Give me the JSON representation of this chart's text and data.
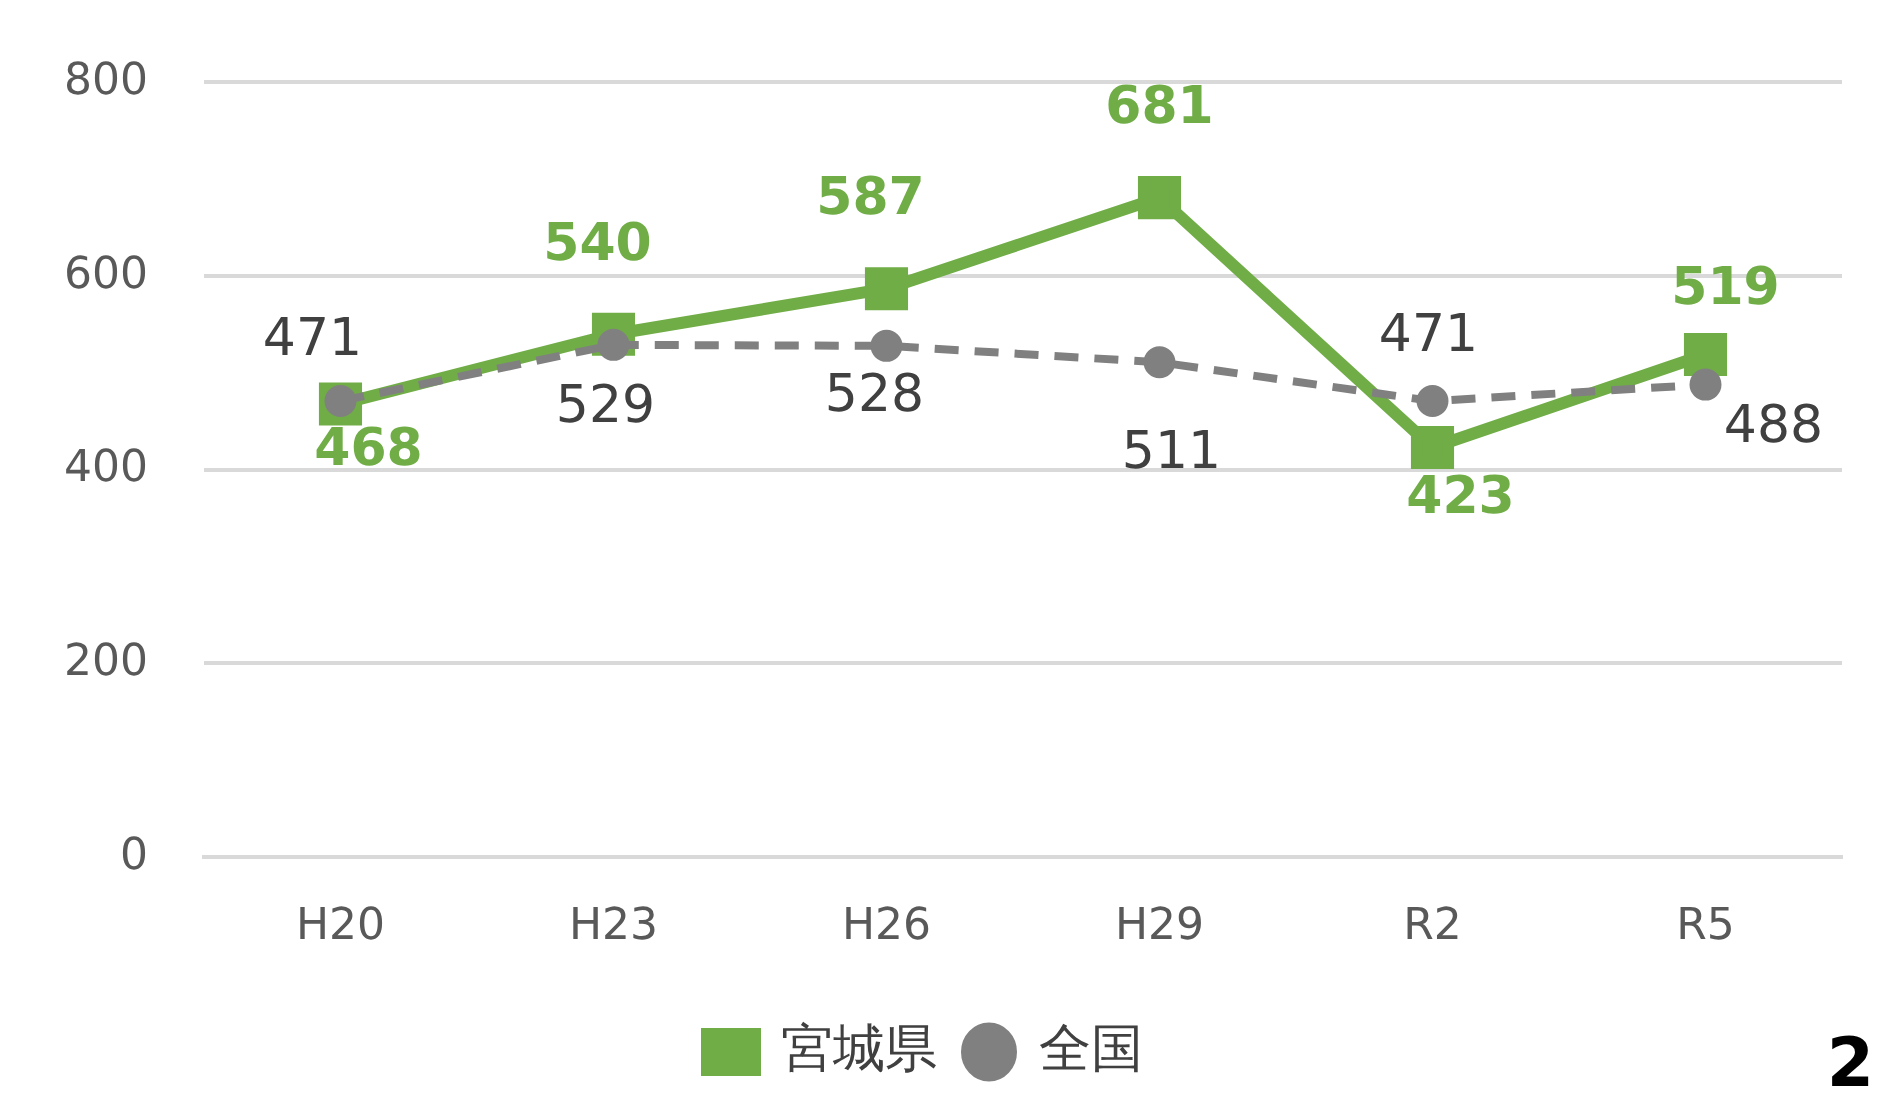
{
  "chart_data": {
    "type": "line",
    "categories": [
      "H20",
      "H23",
      "H26",
      "H29",
      "R2",
      "R5"
    ],
    "series": [
      {
        "name": "宮城県",
        "color": "#70ad47",
        "values": [
          468,
          540,
          587,
          681,
          423,
          519
        ],
        "marker": "square",
        "line_style": "solid"
      },
      {
        "name": "全国",
        "color": "#808080",
        "values": [
          471,
          529,
          528,
          511,
          471,
          488
        ],
        "marker": "circle",
        "line_style": "dashed"
      }
    ],
    "ylim": [
      0,
      800
    ],
    "yticks": [
      0,
      200,
      400,
      600,
      800
    ],
    "grid": "y",
    "legend": "bottom",
    "data_labels": true,
    "annotations": [
      "2"
    ]
  }
}
